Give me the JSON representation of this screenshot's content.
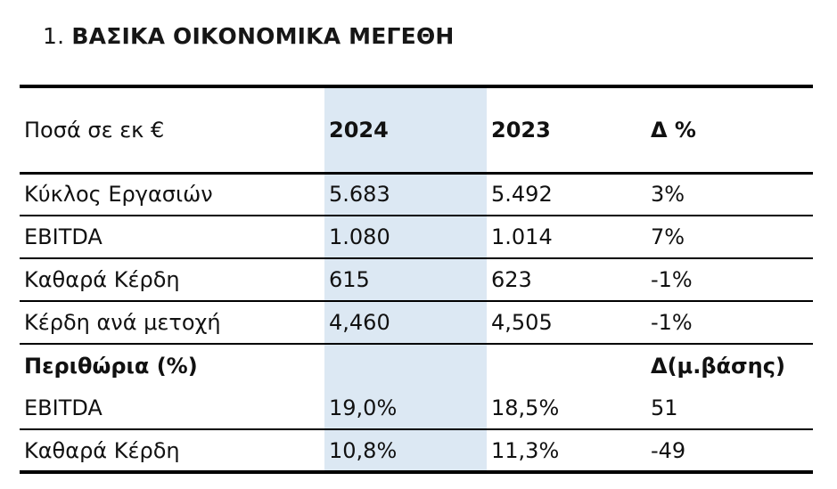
{
  "page": {
    "title_number": "1.",
    "title_text": "ΒΑΣΙΚΑ ΟΙΚΟΝΟΜΙΚΑ ΜΕΓΕΘΗ"
  },
  "table": {
    "highlight_color": "#dce8f3",
    "rule_color": "#000000",
    "header": {
      "col0": "Ποσά σε εκ €",
      "col1": "2024",
      "col2": "2023",
      "col3": "Δ %"
    },
    "rows": [
      {
        "label": "Κύκλος Εργασιών",
        "y2024": "5.683",
        "y2023": "5.492",
        "delta": "3%"
      },
      {
        "label": "EBITDA",
        "y2024": "1.080",
        "y2023": "1.014",
        "delta": "7%"
      },
      {
        "label": "Καθαρά Κέρδη",
        "y2024": "615",
        "y2023": "623",
        "delta": "-1%"
      },
      {
        "label": "Κέρδη ανά μετοχή",
        "y2024": "4,460",
        "y2023": "4,505",
        "delta": "-1%"
      },
      {
        "label": "Περιθώρια (%)",
        "y2024": "",
        "y2023": "",
        "delta": "Δ(μ.βάσης)"
      },
      {
        "label": "EBITDA",
        "y2024": "19,0%",
        "y2023": "18,5%",
        "delta": "51"
      },
      {
        "label": "Καθαρά Κέρδη",
        "y2024": "10,8%",
        "y2023": "11,3%",
        "delta": "-49"
      }
    ]
  },
  "chart_data": {
    "type": "table",
    "title": "1. ΒΑΣΙΚΑ ΟΙΚΟΝΟΜΙΚΑ ΜΕΓΕΘΗ",
    "columns": [
      "Ποσά σε εκ €",
      "2024",
      "2023",
      "Δ %"
    ],
    "rows": [
      [
        "Κύκλος Εργασιών",
        "5.683",
        "5.492",
        "3%"
      ],
      [
        "EBITDA",
        "1.080",
        "1.014",
        "7%"
      ],
      [
        "Καθαρά Κέρδη",
        "615",
        "623",
        "-1%"
      ],
      [
        "Κέρδη ανά μετοχή",
        "4,460",
        "4,505",
        "-1%"
      ],
      [
        "Περιθώρια (%)",
        "",
        "",
        "Δ(μ.βάσης)"
      ],
      [
        "EBITDA",
        "19,0%",
        "18,5%",
        "51"
      ],
      [
        "Καθαρά Κέρδη",
        "10,8%",
        "11,3%",
        "-49"
      ]
    ],
    "layout_hints": {
      "highlighted_column": "2024",
      "highlight_color": "#dce8f3"
    }
  }
}
